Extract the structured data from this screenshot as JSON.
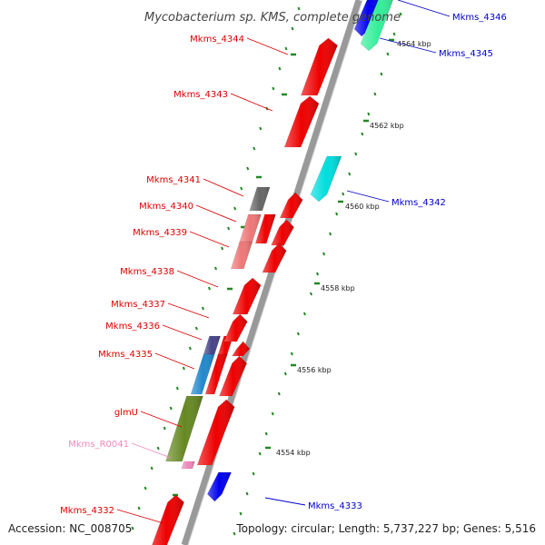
{
  "title": "Mycobacterium sp. KMS, complete genome",
  "footer": {
    "accession": "Accession: NC_008705",
    "summary": "Topology: circular; Length: 5,737,227 bp; Genes: 5,516"
  },
  "colors": {
    "forward_gene": "#ff0000",
    "reverse_label": "#0000cc",
    "forward_label": "#dd0000",
    "rna_label": "#ee88bb",
    "backbone": "#999999",
    "tick": "#228822"
  },
  "kbp_labels": [
    "4564 kbp",
    "4562 kbp",
    "4560 kbp",
    "4558 kbp",
    "4556 kbp",
    "4554 kbp"
  ],
  "genes": [
    {
      "name": "Mkms_4346",
      "strand": "reverse",
      "color": "#0000ee"
    },
    {
      "name": "Mkms_4345",
      "strand": "reverse",
      "color": "#33ee99"
    },
    {
      "name": "Mkms_4344",
      "strand": "forward",
      "color": "#ee0000"
    },
    {
      "name": "Mkms_4343",
      "strand": "forward",
      "color": "#ee0000"
    },
    {
      "name": "Mkms_4342",
      "strand": "reverse",
      "color": "#00dddd"
    },
    {
      "name": "Mkms_4341",
      "strand": "forward",
      "color": "#666666"
    },
    {
      "name": "Mkms_4340",
      "strand": "forward",
      "color": "#ee7777"
    },
    {
      "name": "Mkms_4339",
      "strand": "forward",
      "color": "#ee7777"
    },
    {
      "name": "Mkms_4338",
      "strand": "forward",
      "color": "#ee0000"
    },
    {
      "name": "Mkms_4337",
      "strand": "forward",
      "color": "#ee0000"
    },
    {
      "name": "Mkms_4336",
      "strand": "forward",
      "color": "#444488"
    },
    {
      "name": "Mkms_4335",
      "strand": "forward",
      "color": "#2288cc"
    },
    {
      "name": "glmU",
      "strand": "forward",
      "color": "#668822"
    },
    {
      "name": "Mkms_R0041",
      "strand": "forward",
      "color": "#ee88bb"
    },
    {
      "name": "Mkms_4333",
      "strand": "reverse",
      "color": "#0000ee"
    },
    {
      "name": "Mkms_4332",
      "strand": "forward",
      "color": "#ee0000"
    }
  ]
}
